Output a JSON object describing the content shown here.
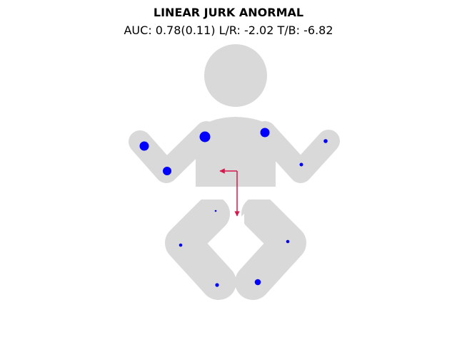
{
  "title": "LINEAR JURK ANORMAL",
  "subtitle": "AUC: 0.78(0.11) L/R: -2.02 T/B: -6.82",
  "colors": {
    "body": "#d9d9d9",
    "marker": "#0000ff",
    "arrow": "#d6174a"
  },
  "markers": [
    {
      "name": "left-hand-marker",
      "size": "large"
    },
    {
      "name": "left-elbow-marker",
      "size": "large"
    },
    {
      "name": "left-shoulder-marker",
      "size": "large"
    },
    {
      "name": "right-shoulder-marker",
      "size": "large"
    },
    {
      "name": "right-elbow-marker",
      "size": "small"
    },
    {
      "name": "right-hand-marker",
      "size": "small"
    },
    {
      "name": "hip-marker",
      "size": "tiny"
    },
    {
      "name": "left-knee-marker",
      "size": "small"
    },
    {
      "name": "left-foot-marker",
      "size": "small"
    },
    {
      "name": "right-knee-marker",
      "size": "small"
    },
    {
      "name": "right-foot-marker",
      "size": "medium"
    }
  ]
}
